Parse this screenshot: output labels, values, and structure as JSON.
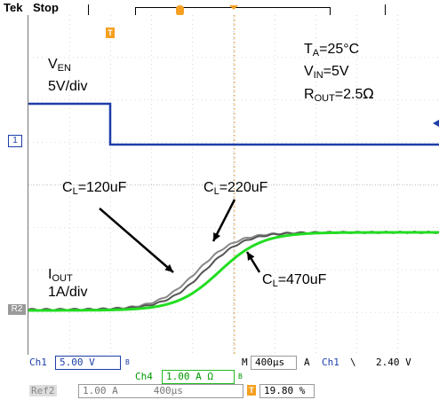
{
  "header": {
    "brand": "Tek",
    "state": "Stop",
    "trigger_marker": "T"
  },
  "annotations": {
    "ta_label": "T",
    "ta_sub": "A",
    "ta_value": "=25°C",
    "vin_label": "V",
    "vin_sub": "IN",
    "vin_value": "=5V",
    "rout_label": "R",
    "rout_sub": "OUT",
    "rout_value": "=2.5",
    "rout_unit": "Ω",
    "ven_label": "V",
    "ven_sub": "EN",
    "ven_scale": "5V/div",
    "iout_label": "I",
    "iout_sub": "OUT",
    "iout_scale": "1A/div",
    "cl1_label": "C",
    "cl1_sub": "L",
    "cl1_value": "=120uF",
    "cl2_label": "C",
    "cl2_sub": "L",
    "cl2_value": "=220uF",
    "cl3_label": "C",
    "cl3_sub": "L",
    "cl3_value": "=470uF"
  },
  "markers": {
    "ch1": "1",
    "ref2": "R2",
    "trig_screen": "T"
  },
  "status": {
    "ch1_label": "Ch1",
    "ch1_scale": "5.00 V",
    "ch1_bw": "B",
    "ch4_label": "Ch4",
    "ch4_scale": "1.00 A Ω",
    "ch4_bw": "B",
    "m_label": "M",
    "timebase": "400µs",
    "a_label": "A",
    "trig_src": "Ch1",
    "trig_slope": "\\",
    "trig_level": "2.40 V",
    "ref2_label": "Ref2",
    "ref2_scale": "1.00 A",
    "ref2_time": "400µs",
    "trig_pos": "19.80 %"
  },
  "colors": {
    "ch1": "#1e3ea8",
    "ch4_470uF": "#22dd22",
    "curve_220uF": "#555555",
    "curve_120uF": "#888888",
    "accent": "#f5a020",
    "ch4_text": "#009900"
  }
}
